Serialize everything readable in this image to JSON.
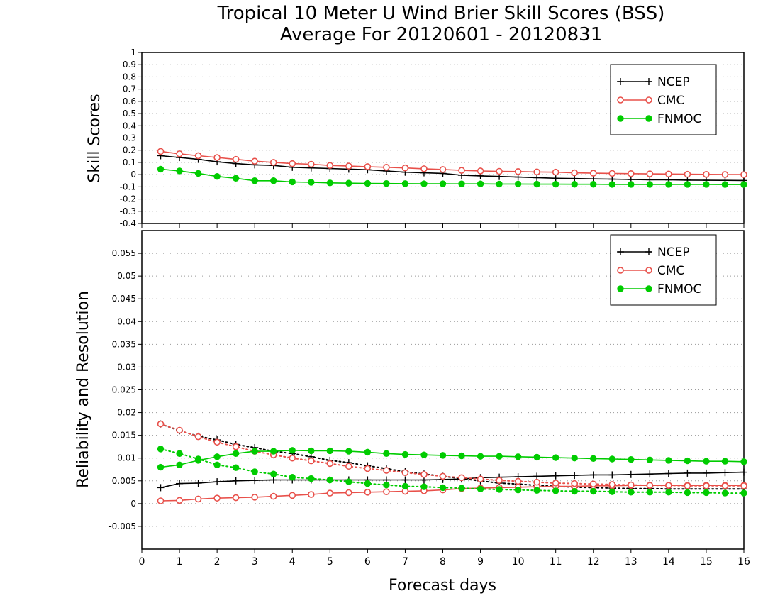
{
  "title_line1": "Tropical 10 Meter U Wind Brier Skill Scores (BSS)",
  "title_line2": "Average For 20120601 - 20120831",
  "xlabel": "Forecast days",
  "colors": {
    "NCEP": "#000000",
    "CMC": "#e8504a",
    "FNMOC": "#00cc00"
  },
  "chart_data": [
    {
      "type": "line",
      "ylabel": "Skill Scores",
      "ylim": [
        -0.4,
        1
      ],
      "yticks": [
        "-0.4",
        "-0.3",
        "-0.2",
        "-0.1",
        "0",
        "0.1",
        "0.2",
        "0.3",
        "0.4",
        "0.5",
        "0.6",
        "0.7",
        "0.8",
        "0.9",
        "1"
      ],
      "xlim": [
        0,
        16
      ],
      "xticks": [
        "0",
        "1",
        "2",
        "3",
        "4",
        "5",
        "6",
        "7",
        "8",
        "9",
        "10",
        "11",
        "12",
        "13",
        "14",
        "15",
        "16"
      ],
      "grid": true,
      "legend": "top-right",
      "x": [
        0.5,
        1,
        1.5,
        2,
        2.5,
        3,
        3.5,
        4,
        4.5,
        5,
        5.5,
        6,
        6.5,
        7,
        7.5,
        8,
        8.5,
        9,
        9.5,
        10,
        10.5,
        11,
        11.5,
        12,
        12.5,
        13,
        13.5,
        14,
        14.5,
        15,
        15.5,
        16
      ],
      "series": [
        {
          "name": "NCEP",
          "style": "solid",
          "marker": "plus",
          "values": [
            0.155,
            0.14,
            0.125,
            0.105,
            0.09,
            0.08,
            0.075,
            0.06,
            0.055,
            0.05,
            0.045,
            0.04,
            0.03,
            0.02,
            0.015,
            0.01,
            -0.005,
            -0.01,
            -0.015,
            -0.02,
            -0.025,
            -0.03,
            -0.032,
            -0.035,
            -0.037,
            -0.04,
            -0.042,
            -0.043,
            -0.045,
            -0.046,
            -0.047,
            -0.048
          ]
        },
        {
          "name": "CMC",
          "style": "solid",
          "marker": "open-circle",
          "values": [
            0.19,
            0.17,
            0.155,
            0.14,
            0.125,
            0.11,
            0.1,
            0.09,
            0.085,
            0.075,
            0.07,
            0.065,
            0.06,
            0.055,
            0.048,
            0.042,
            0.035,
            0.03,
            0.027,
            0.025,
            0.022,
            0.02,
            0.015,
            0.012,
            0.01,
            0.008,
            0.006,
            0.005,
            0.003,
            0.002,
            0.001,
            0.0
          ]
        },
        {
          "name": "FNMOC",
          "style": "solid",
          "marker": "filled-circle",
          "values": [
            0.045,
            0.03,
            0.01,
            -0.015,
            -0.03,
            -0.05,
            -0.05,
            -0.06,
            -0.063,
            -0.068,
            -0.07,
            -0.072,
            -0.073,
            -0.074,
            -0.075,
            -0.075,
            -0.076,
            -0.076,
            -0.077,
            -0.077,
            -0.078,
            -0.078,
            -0.079,
            -0.079,
            -0.08,
            -0.08,
            -0.08,
            -0.08,
            -0.08,
            -0.08,
            -0.081,
            -0.081
          ]
        }
      ]
    },
    {
      "type": "line",
      "ylabel": "Reliability and Resolution",
      "ylim": [
        -0.01,
        0.06
      ],
      "yticks": [
        "-0.005",
        "0",
        "0.005",
        "0.01",
        "0.015",
        "0.02",
        "0.025",
        "0.03",
        "0.035",
        "0.04",
        "0.045",
        "0.05",
        "0.055"
      ],
      "xlim": [
        0,
        16
      ],
      "xticks": [
        "0",
        "1",
        "2",
        "3",
        "4",
        "5",
        "6",
        "7",
        "8",
        "9",
        "10",
        "11",
        "12",
        "13",
        "14",
        "15",
        "16"
      ],
      "grid": true,
      "legend": "top-right",
      "x": [
        0.5,
        1,
        1.5,
        2,
        2.5,
        3,
        3.5,
        4,
        4.5,
        5,
        5.5,
        6,
        6.5,
        7,
        7.5,
        8,
        8.5,
        9,
        9.5,
        10,
        10.5,
        11,
        11.5,
        12,
        12.5,
        13,
        13.5,
        14,
        14.5,
        15,
        15.5,
        16
      ],
      "series": [
        {
          "name": "NCEP",
          "style": "solid",
          "marker": "plus",
          "values": [
            0.0035,
            0.0044,
            0.0045,
            0.0048,
            0.005,
            0.0051,
            0.0052,
            0.0052,
            0.0052,
            0.0052,
            0.0052,
            0.0052,
            0.0052,
            0.0052,
            0.0052,
            0.0053,
            0.0054,
            0.0057,
            0.0058,
            0.0059,
            0.006,
            0.0061,
            0.0062,
            0.0063,
            0.0063,
            0.0064,
            0.0065,
            0.0066,
            0.0067,
            0.0067,
            0.0068,
            0.0069
          ]
        },
        {
          "legend": false,
          "style": "dotted",
          "marker": "plus",
          "values": [
            0.0175,
            0.016,
            0.0148,
            0.014,
            0.013,
            0.0123,
            0.0115,
            0.011,
            0.0103,
            0.0095,
            0.009,
            0.0083,
            0.0077,
            0.007,
            0.0065,
            0.006,
            0.0055,
            0.005,
            0.0045,
            0.0043,
            0.004,
            0.0038,
            0.0036,
            0.0035,
            0.0034,
            0.0033,
            0.0033,
            0.0032,
            0.0032,
            0.0032,
            0.0032,
            0.0032
          ]
        },
        {
          "name": "CMC",
          "style": "solid",
          "marker": "open-circle",
          "values": [
            0.0006,
            0.0007,
            0.001,
            0.0012,
            0.0013,
            0.0014,
            0.0016,
            0.0018,
            0.002,
            0.0023,
            0.0024,
            0.0025,
            0.0026,
            0.0027,
            0.0028,
            0.003,
            0.0033,
            0.0034,
            0.0035,
            0.0036,
            0.0037,
            0.0038,
            0.0038,
            0.0039,
            0.0039,
            0.004,
            0.004,
            0.004,
            0.004,
            0.004,
            0.004,
            0.004
          ]
        },
        {
          "legend": false,
          "style": "dotted",
          "marker": "open-circle",
          "values": [
            0.0175,
            0.0161,
            0.0147,
            0.0135,
            0.0125,
            0.0115,
            0.0107,
            0.01,
            0.0094,
            0.0088,
            0.0082,
            0.0077,
            0.0073,
            0.0068,
            0.0064,
            0.006,
            0.0057,
            0.0054,
            0.0051,
            0.0049,
            0.0047,
            0.0045,
            0.0044,
            0.0043,
            0.0042,
            0.0041,
            0.004,
            0.004,
            0.0039,
            0.0039,
            0.0039,
            0.0039
          ]
        },
        {
          "name": "FNMOC",
          "style": "solid",
          "marker": "filled-circle",
          "values": [
            0.008,
            0.0085,
            0.0095,
            0.0103,
            0.011,
            0.0115,
            0.0115,
            0.0117,
            0.0116,
            0.0116,
            0.0115,
            0.0113,
            0.011,
            0.0108,
            0.0107,
            0.0106,
            0.0105,
            0.0104,
            0.0104,
            0.0103,
            0.0102,
            0.0101,
            0.01,
            0.0099,
            0.0098,
            0.0097,
            0.0096,
            0.0095,
            0.0094,
            0.0093,
            0.0093,
            0.0092
          ]
        },
        {
          "legend": false,
          "style": "dotted",
          "marker": "filled-circle",
          "values": [
            0.012,
            0.011,
            0.0098,
            0.0085,
            0.0079,
            0.007,
            0.0065,
            0.0058,
            0.0055,
            0.0052,
            0.0048,
            0.0044,
            0.0041,
            0.0038,
            0.0037,
            0.0035,
            0.0034,
            0.0032,
            0.0031,
            0.003,
            0.0029,
            0.0028,
            0.0027,
            0.0027,
            0.0026,
            0.0025,
            0.0025,
            0.0025,
            0.0024,
            0.0024,
            0.0023,
            0.0023
          ]
        }
      ]
    }
  ]
}
